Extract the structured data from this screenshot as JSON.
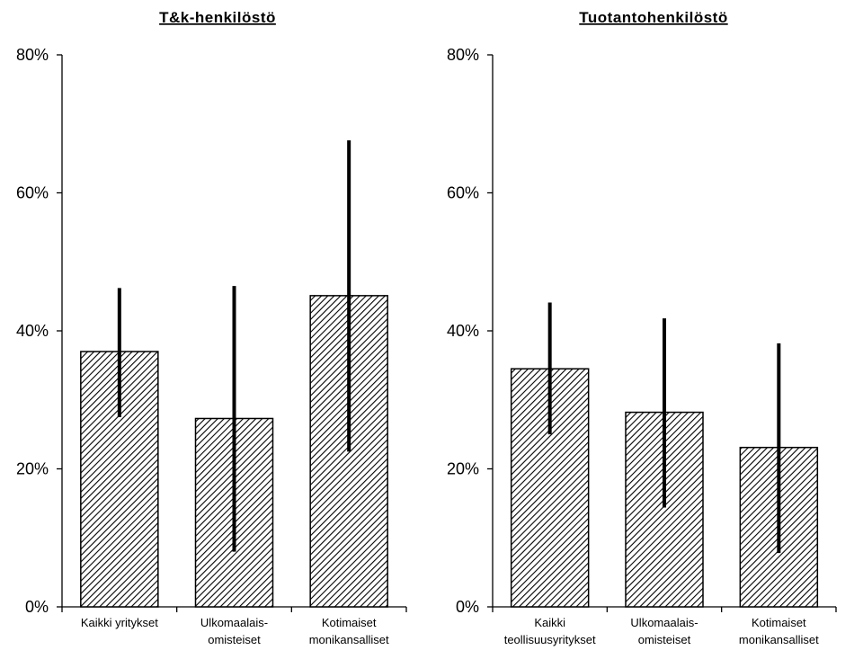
{
  "chart_data": [
    {
      "type": "bar",
      "title": "T&k-henkilöstö",
      "xlabel": "",
      "ylabel": "",
      "ylim": [
        0,
        80
      ],
      "yticks": [
        "0%",
        "20%",
        "40%",
        "60%",
        "80%"
      ],
      "categories": [
        [
          "Kaikki yritykset"
        ],
        [
          "Ulkomaalais-",
          "omisteiset"
        ],
        [
          "Kotimaiset",
          "monikansalliset"
        ]
      ],
      "values": [
        37,
        27.3,
        45.1
      ],
      "error_low": [
        27.5,
        8,
        22.5
      ],
      "error_high": [
        46.2,
        46.5,
        67.6
      ],
      "bar_fill": "diagonal-hatch",
      "bar_color": "#000000",
      "grid": false
    },
    {
      "type": "bar",
      "title": "Tuotantohenkilöstö",
      "xlabel": "",
      "ylabel": "",
      "ylim": [
        0,
        80
      ],
      "yticks": [
        "0%",
        "20%",
        "40%",
        "60%",
        "80%"
      ],
      "categories": [
        [
          "Kaikki",
          "teollisuusyritykset"
        ],
        [
          "Ulkomaalais-",
          "omisteiset"
        ],
        [
          "Kotimaiset",
          "monikansalliset"
        ]
      ],
      "values": [
        34.5,
        28.2,
        23.1
      ],
      "error_low": [
        25,
        14.4,
        7.8
      ],
      "error_high": [
        44.1,
        41.8,
        38.2
      ],
      "bar_fill": "diagonal-hatch",
      "bar_color": "#000000",
      "grid": false
    }
  ]
}
